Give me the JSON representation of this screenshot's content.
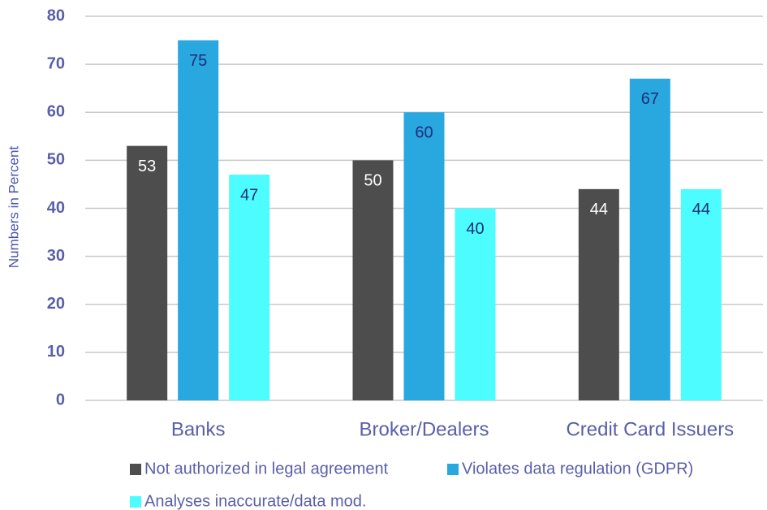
{
  "chart_data": {
    "type": "bar",
    "categories": [
      "Banks",
      "Broker/Dealers",
      "Credit Card Issuers"
    ],
    "series": [
      {
        "name": "Not authorized in legal agreement",
        "color": "#4d4d4d",
        "values": [
          53,
          50,
          44
        ]
      },
      {
        "name": "Violates data regulation (GDPR)",
        "color": "#29a8e0",
        "values": [
          75,
          60,
          67
        ]
      },
      {
        "name": "Analyses inaccurate/data mod.",
        "color": "#4dfcff",
        "values": [
          47,
          40,
          44
        ]
      }
    ],
    "y_label": "Numbers in Percent",
    "ylim": [
      0,
      80
    ],
    "yticks": [
      0,
      10,
      20,
      30,
      40,
      50,
      60,
      70,
      80
    ],
    "grid": true,
    "legend": "bottom"
  }
}
